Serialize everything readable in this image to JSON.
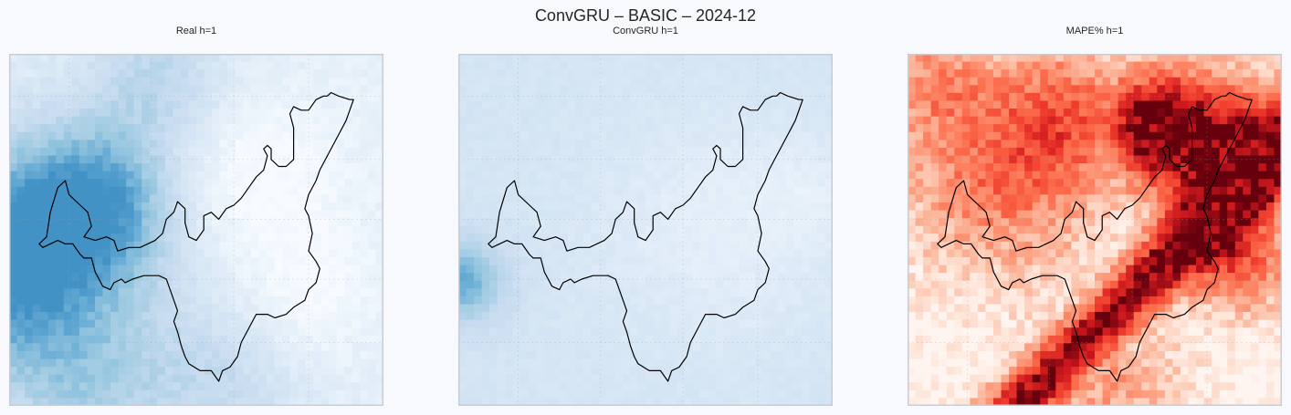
{
  "figure": {
    "suptitle": "ConvGRU – BASIC – 2024-12"
  },
  "chart_data": [
    {
      "type": "heatmap",
      "title": "Real h=1",
      "colormap": "Blues",
      "xlabel": "",
      "ylabel": "",
      "grid": true,
      "legend": "none",
      "field_description": "stronger values on west side, fading east; low values north-center and south-east"
    },
    {
      "type": "heatmap",
      "title": "ConvGRU h=1",
      "colormap": "Blues",
      "xlabel": "",
      "ylabel": "",
      "grid": true,
      "legend": "none",
      "field_description": "smooth light field, slightly stronger at far west edge"
    },
    {
      "type": "heatmap",
      "title": "MAPE% h=1",
      "colormap": "Reds",
      "xlabel": "",
      "ylabel": "",
      "grid": true,
      "legend": "none",
      "field_description": "dark red diagonal band from south-west to north-east; lighter reds elsewhere"
    }
  ],
  "colors": {
    "blues_low": "#f7fbff",
    "blues_high": "#4292c6",
    "reds_low": "#fff5f0",
    "reds_high": "#67000d",
    "outline": "#000000",
    "frame": "#c8ccd4"
  }
}
